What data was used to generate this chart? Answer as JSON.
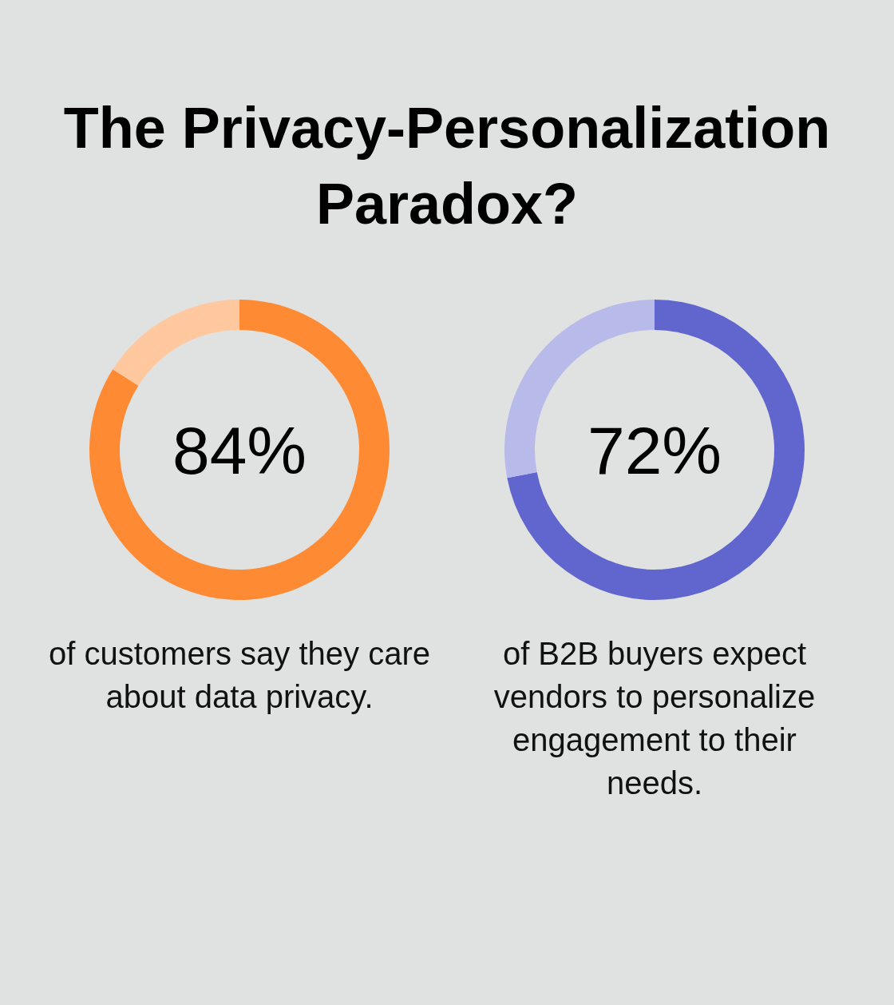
{
  "chart_data": [
    {
      "type": "other",
      "title": "The Privacy-Personalization Paradox?"
    },
    {
      "type": "donut",
      "categories": [
        null,
        null
      ],
      "values": [
        84,
        16
      ],
      "colors": [
        "#fe8b34",
        "#ffc89e"
      ],
      "value_labels": [
        "84%",
        null
      ],
      "annotations": [
        "of customers say they care about data privacy."
      ]
    },
    {
      "type": "donut",
      "categories": [
        null,
        null
      ],
      "values": [
        72,
        28
      ],
      "colors": [
        "#6166cf",
        "#b8bbe9"
      ],
      "value_labels": [
        "72%",
        null
      ],
      "annotations": [
        "of B2B buyers expect vendors to personalize engagement to their needs."
      ]
    }
  ]
}
